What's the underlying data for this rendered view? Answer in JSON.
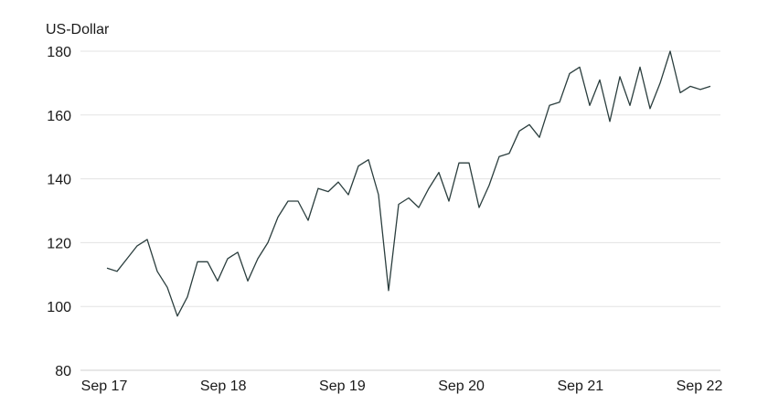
{
  "chart_data": {
    "type": "line",
    "title": "",
    "ylabel": "US-Dollar",
    "xlabel": "",
    "ylim": [
      80,
      180
    ],
    "yticks": [
      80,
      100,
      120,
      140,
      160,
      180
    ],
    "xticks": [
      "Sep 17",
      "Sep 18",
      "Sep 19",
      "Sep 20",
      "Sep 21",
      "Sep 22"
    ],
    "grid": "horizontal",
    "colors": {
      "line": "#2b3e3e",
      "grid": "#e3e3e3",
      "text": "#1a1a1a"
    },
    "series": [
      {
        "x": [
          "2017-09",
          "2017-10",
          "2017-11",
          "2017-12",
          "2018-01",
          "2018-02",
          "2018-03",
          "2018-04",
          "2018-05",
          "2018-06",
          "2018-07",
          "2018-08",
          "2018-09",
          "2018-10",
          "2018-11",
          "2018-12",
          "2019-01",
          "2019-02",
          "2019-03",
          "2019-04",
          "2019-05",
          "2019-06",
          "2019-07",
          "2019-08",
          "2019-09",
          "2019-10",
          "2019-11",
          "2019-12",
          "2020-01",
          "2020-02",
          "2020-03",
          "2020-04",
          "2020-05",
          "2020-06",
          "2020-07",
          "2020-08",
          "2020-09",
          "2020-10",
          "2020-11",
          "2020-12",
          "2021-01",
          "2021-02",
          "2021-03",
          "2021-04",
          "2021-05",
          "2021-06",
          "2021-07",
          "2021-08",
          "2021-09",
          "2021-10",
          "2021-11",
          "2021-12",
          "2022-01",
          "2022-02",
          "2022-03",
          "2022-04",
          "2022-05",
          "2022-06",
          "2022-07",
          "2022-08",
          "2022-09"
        ],
        "values": [
          112,
          111,
          115,
          119,
          121,
          111,
          106,
          97,
          103,
          114,
          114,
          108,
          115,
          117,
          108,
          115,
          120,
          128,
          133,
          133,
          127,
          137,
          136,
          139,
          135,
          144,
          146,
          135,
          105,
          132,
          134,
          131,
          137,
          142,
          133,
          145,
          145,
          131,
          138,
          147,
          148,
          155,
          157,
          153,
          163,
          164,
          173,
          175,
          163,
          171,
          158,
          172,
          163,
          175,
          162,
          170,
          180,
          167,
          169,
          168,
          169
        ]
      }
    ]
  }
}
